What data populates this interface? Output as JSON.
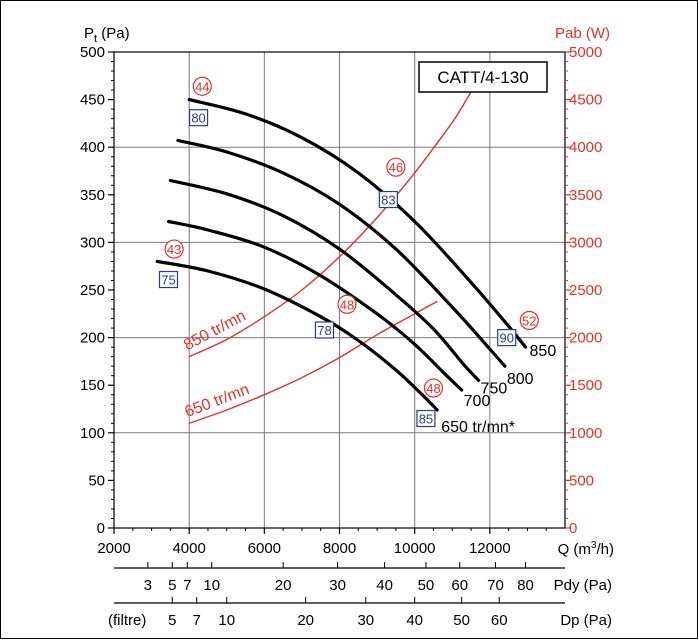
{
  "chart_data": {
    "type": "line",
    "model_label": "CATT/4-130",
    "left_axis": {
      "label_main": "P",
      "label_sub": "t",
      "label_unit": " (Pa)",
      "ylim": [
        0,
        500
      ],
      "ticks": [
        "0",
        "50",
        "100",
        "150",
        "200",
        "250",
        "300",
        "350",
        "400",
        "450",
        "500"
      ]
    },
    "right_axis": {
      "label": "Pab (W)",
      "ylim": [
        0,
        5000
      ],
      "ticks": [
        "0",
        "500",
        "1000",
        "1500",
        "2000",
        "2500",
        "3000",
        "3500",
        "4000",
        "4500",
        "5000"
      ]
    },
    "x_axis": {
      "label_prefix": "Q (m",
      "label_sup": "3",
      "label_suffix": "/h)",
      "xlim": [
        2000,
        14000
      ],
      "ticks": [
        "2000",
        "4000",
        "6000",
        "8000",
        "10000",
        "12000"
      ]
    },
    "pdy_scale": {
      "label": "Pdy (Pa)",
      "ticks": [
        {
          "label": "3",
          "q": 2900
        },
        {
          "label": "5",
          "q": 3550
        },
        {
          "label": "7",
          "q": 3950
        },
        {
          "label": "10",
          "q": 4600
        },
        {
          "label": "20",
          "q": 6500
        },
        {
          "label": "30",
          "q": 7950
        },
        {
          "label": "40",
          "q": 9200
        },
        {
          "label": "50",
          "q": 10300
        },
        {
          "label": "60",
          "q": 11200
        },
        {
          "label": "70",
          "q": 12150
        },
        {
          "label": "80",
          "q": 12950
        }
      ]
    },
    "dp_scale": {
      "label": "Dp (Pa)",
      "filter_label": "(filtre)",
      "ticks": [
        {
          "label": "5",
          "q": 3550
        },
        {
          "label": "7",
          "q": 4200
        },
        {
          "label": "10",
          "q": 5000
        },
        {
          "label": "20",
          "q": 7100
        },
        {
          "label": "30",
          "q": 8700
        },
        {
          "label": "40",
          "q": 10000
        },
        {
          "label": "50",
          "q": 11250
        },
        {
          "label": "60",
          "q": 12250
        }
      ]
    },
    "grid": true,
    "pressure_series": [
      {
        "name": "850",
        "label": "850",
        "points": [
          [
            4000,
            450
          ],
          [
            5500,
            435
          ],
          [
            7000,
            410
          ],
          [
            8500,
            373
          ],
          [
            10000,
            322
          ],
          [
            11500,
            258
          ],
          [
            12500,
            212
          ],
          [
            12950,
            190
          ]
        ]
      },
      {
        "name": "800",
        "label": "800",
        "points": [
          [
            3700,
            407
          ],
          [
            5000,
            395
          ],
          [
            6500,
            373
          ],
          [
            8000,
            340
          ],
          [
            9500,
            293
          ],
          [
            11000,
            232
          ],
          [
            12000,
            188
          ],
          [
            12400,
            170
          ]
        ]
      },
      {
        "name": "750",
        "label": "750",
        "points": [
          [
            3500,
            365
          ],
          [
            5000,
            351
          ],
          [
            6500,
            328
          ],
          [
            8000,
            293
          ],
          [
            9500,
            245
          ],
          [
            10500,
            209
          ],
          [
            11300,
            172
          ],
          [
            11700,
            155
          ]
        ]
      },
      {
        "name": "700",
        "label": "700",
        "points": [
          [
            3450,
            322
          ],
          [
            4500,
            313
          ],
          [
            6000,
            295
          ],
          [
            7500,
            265
          ],
          [
            9000,
            225
          ],
          [
            10000,
            193
          ],
          [
            10800,
            162
          ],
          [
            11250,
            145
          ]
        ]
      },
      {
        "name": "650",
        "label": "650 tr/mn*",
        "points": [
          [
            3150,
            280
          ],
          [
            4500,
            270
          ],
          [
            6000,
            251
          ],
          [
            7500,
            222
          ],
          [
            8500,
            197
          ],
          [
            9500,
            166
          ],
          [
            10200,
            140
          ],
          [
            10600,
            124
          ]
        ]
      }
    ],
    "power_series": [
      {
        "name": "850 tr/mn",
        "label": "850 tr/mn",
        "points": [
          [
            4000,
            1800
          ],
          [
            5000,
            1980
          ],
          [
            6000,
            2220
          ],
          [
            7000,
            2500
          ],
          [
            8000,
            2850
          ],
          [
            9000,
            3260
          ],
          [
            10000,
            3730
          ],
          [
            11000,
            4260
          ],
          [
            12000,
            4820
          ],
          [
            12900,
            4620
          ]
        ]
      },
      {
        "name": "650 tr/mn",
        "label": "650 tr/mn",
        "points": [
          [
            4000,
            1100
          ],
          [
            5000,
            1240
          ],
          [
            6000,
            1400
          ],
          [
            7000,
            1580
          ],
          [
            8000,
            1790
          ],
          [
            9000,
            2030
          ],
          [
            10000,
            2250
          ],
          [
            10600,
            2380
          ]
        ]
      }
    ],
    "efficiency_labels": [
      {
        "label": "44",
        "style": "circle",
        "q": 4350,
        "p": 464
      },
      {
        "label": "80",
        "style": "box",
        "q": 4250,
        "p": 431
      },
      {
        "label": "46",
        "style": "circle",
        "q": 9500,
        "p": 379
      },
      {
        "label": "83",
        "style": "box",
        "q": 9300,
        "p": 345
      },
      {
        "label": "43",
        "style": "circle",
        "q": 3600,
        "p": 293
      },
      {
        "label": "75",
        "style": "box",
        "q": 3450,
        "p": 261
      },
      {
        "label": "48",
        "style": "circle",
        "q": 8200,
        "p": 235
      },
      {
        "label": "78",
        "style": "box",
        "q": 7600,
        "p": 208
      },
      {
        "label": "48",
        "style": "circle",
        "q": 10500,
        "p": 147
      },
      {
        "label": "85",
        "style": "box",
        "q": 10300,
        "p": 115
      },
      {
        "label": "52",
        "style": "circle",
        "q": 13050,
        "p": 218
      },
      {
        "label": "90",
        "style": "box",
        "q": 12450,
        "p": 200
      }
    ],
    "colors": {
      "pressure": "#000000",
      "power": "#e0322b",
      "efficiency_circle": "#e0322b",
      "efficiency_box": "#2b3c8e",
      "grid": "#7a7a7a"
    }
  }
}
